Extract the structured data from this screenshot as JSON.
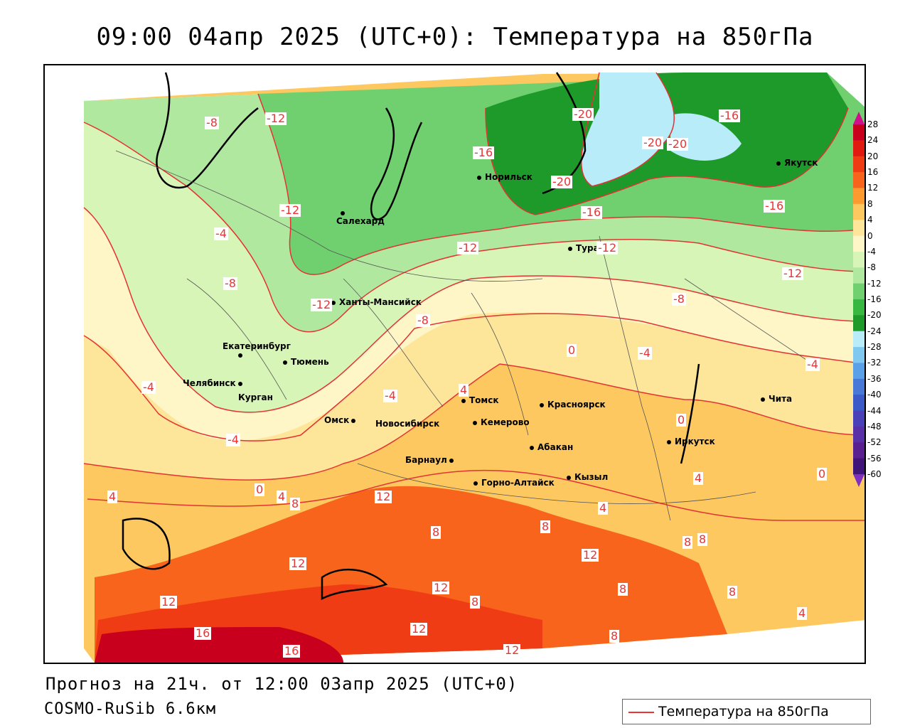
{
  "title": "09:00 04апр 2025 (UTC+0): Температура на 850гПа",
  "footer": {
    "forecast": "Прогноз на 21ч. от 12:00 03апр 2025 (UTC+0)",
    "model": "COSMO-RuSib 6.6км"
  },
  "legend": {
    "label": "Температура на 850гПа",
    "line_color": "#e33333"
  },
  "colorbar": {
    "labels": [
      "28",
      "24",
      "20",
      "16",
      "12",
      "8",
      "4",
      "0",
      "-4",
      "-8",
      "-12",
      "-16",
      "-20",
      "-24",
      "-28",
      "-32",
      "-36",
      "-40",
      "-44",
      "-48",
      "-52",
      "-56",
      "-60"
    ],
    "colors": [
      "#c8001e",
      "#e01a10",
      "#f03c14",
      "#f8641c",
      "#fc9a30",
      "#fdc860",
      "#fde59a",
      "#fff6c8",
      "#d8f5b8",
      "#b0e8a0",
      "#70d070",
      "#38b840",
      "#1e9a2a",
      "#b8ecf8",
      "#80c8f0",
      "#5aa0e8",
      "#4878d8",
      "#3c5ac8",
      "#4a40b8",
      "#5830a8",
      "#5a2090",
      "#401478"
    ]
  },
  "cities": [
    {
      "name": "Норильск"
    },
    {
      "name": "Якутск"
    },
    {
      "name": "Салехард"
    },
    {
      "name": "Тура"
    },
    {
      "name": "Ханты-Мансийск"
    },
    {
      "name": "Екатеринбург"
    },
    {
      "name": "Тюмень"
    },
    {
      "name": "Челябинск"
    },
    {
      "name": "Курган"
    },
    {
      "name": "Омск"
    },
    {
      "name": "Томск"
    },
    {
      "name": "Красноярск"
    },
    {
      "name": "Новосибирск"
    },
    {
      "name": "Кемерово"
    },
    {
      "name": "Абакан"
    },
    {
      "name": "Барнаул"
    },
    {
      "name": "Горно-Алтайск"
    },
    {
      "name": "Кызыл"
    },
    {
      "name": "Иркутск"
    },
    {
      "name": "Чита"
    }
  ],
  "contour_labels": [
    "-8",
    "-12",
    "-16",
    "-20",
    "-20",
    "-16",
    "-20",
    "-20",
    "-12",
    "-16",
    "-16",
    "-4",
    "-12",
    "-12",
    "-8",
    "-12",
    "-8",
    "0",
    "-4",
    "-12",
    "-8",
    "-4",
    "-4",
    "4",
    "-4",
    "0",
    "-4",
    "4",
    "0",
    "4",
    "8",
    "12",
    "4",
    "8",
    "8",
    "12",
    "12",
    "8",
    "4",
    "8",
    "8",
    "0",
    "12",
    "8",
    "12",
    "16",
    "16",
    "12",
    "12",
    "8",
    "8",
    "4"
  ]
}
